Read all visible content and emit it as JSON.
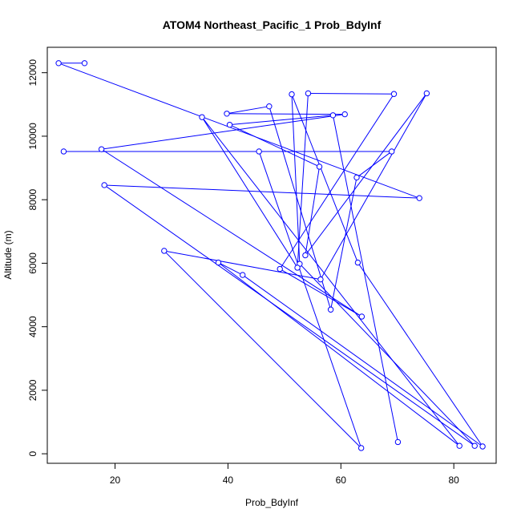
{
  "chart_data": {
    "type": "line",
    "title": "ATOM4 Northeast_Pacific_1 Prob_BdyInf",
    "xlabel": "Prob_BdyInf",
    "ylabel": "Altitude (m)",
    "xlim": [
      8,
      87.5
    ],
    "ylim": [
      -300,
      12800
    ],
    "xticks": [
      20,
      40,
      60,
      80
    ],
    "yticks": [
      0,
      2000,
      4000,
      6000,
      8000,
      10000,
      12000
    ],
    "grid": false,
    "legend": "none",
    "series": [
      {
        "points": [
          {
            "x": 14.6,
            "y": 12300
          },
          {
            "x": 10.0,
            "y": 12300
          },
          {
            "x": 73.9,
            "y": 8050
          },
          {
            "x": 18.1,
            "y": 8460
          },
          {
            "x": 83.7,
            "y": 250
          },
          {
            "x": 52.7,
            "y": 5980
          },
          {
            "x": 51.3,
            "y": 11320
          },
          {
            "x": 63.0,
            "y": 6020
          },
          {
            "x": 85.1,
            "y": 230
          },
          {
            "x": 42.6,
            "y": 5630
          },
          {
            "x": 38.3,
            "y": 6020
          },
          {
            "x": 81.0,
            "y": 250
          },
          {
            "x": 35.4,
            "y": 10600
          },
          {
            "x": 52.3,
            "y": 5860
          },
          {
            "x": 54.2,
            "y": 11350
          },
          {
            "x": 69.4,
            "y": 11330
          },
          {
            "x": 49.2,
            "y": 5820
          },
          {
            "x": 63.7,
            "y": 4320
          },
          {
            "x": 17.6,
            "y": 9590
          },
          {
            "x": 60.7,
            "y": 10690
          },
          {
            "x": 39.8,
            "y": 10710
          },
          {
            "x": 47.3,
            "y": 10940
          },
          {
            "x": 58.2,
            "y": 4540
          },
          {
            "x": 62.8,
            "y": 8700
          },
          {
            "x": 69.0,
            "y": 9520
          },
          {
            "x": 10.9,
            "y": 9520
          },
          {
            "x": 45.5,
            "y": 9520
          },
          {
            "x": 63.6,
            "y": 180
          },
          {
            "x": 28.7,
            "y": 6390
          },
          {
            "x": 56.4,
            "y": 5490
          },
          {
            "x": 75.2,
            "y": 11350
          },
          {
            "x": 53.7,
            "y": 6250
          },
          {
            "x": 56.2,
            "y": 9040
          },
          {
            "x": 40.3,
            "y": 10360
          },
          {
            "x": 58.6,
            "y": 10660
          },
          {
            "x": 70.1,
            "y": 370
          }
        ],
        "color": "#0000ff"
      }
    ]
  }
}
